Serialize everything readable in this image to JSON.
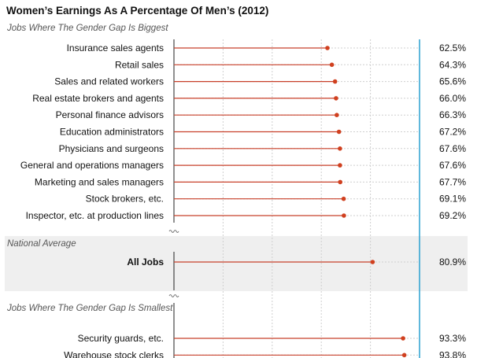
{
  "chart_data": {
    "type": "dot-line",
    "title": "Women’s Earnings As A Percentage Of Men’s (2012)",
    "unit": "%",
    "xlim": [
      0,
      100
    ],
    "grid": true,
    "colors": {
      "line": "#c8402a",
      "dot": "#d0401f",
      "reference_line": "#2aa0d0",
      "band": "#efefef"
    },
    "sections": [
      {
        "name": "Jobs Where The Gender Gap Is Biggest",
        "items": [
          {
            "label": "Insurance sales agents",
            "value": 62.5,
            "value_label": "62.5%"
          },
          {
            "label": "Retail sales",
            "value": 64.3,
            "value_label": "64.3%"
          },
          {
            "label": "Sales and related workers",
            "value": 65.6,
            "value_label": "65.6%"
          },
          {
            "label": "Real estate brokers and agents",
            "value": 66.0,
            "value_label": "66.0%"
          },
          {
            "label": "Personal finance advisors",
            "value": 66.3,
            "value_label": "66.3%"
          },
          {
            "label": "Education administrators",
            "value": 67.2,
            "value_label": "67.2%"
          },
          {
            "label": "Physicians and surgeons",
            "value": 67.6,
            "value_label": "67.6%"
          },
          {
            "label": "General and operations managers",
            "value": 67.6,
            "value_label": "67.6%"
          },
          {
            "label": "Marketing and sales managers",
            "value": 67.7,
            "value_label": "67.7%"
          },
          {
            "label": "Stock brokers, etc.",
            "value": 69.1,
            "value_label": "69.1%"
          },
          {
            "label": "Inspector, etc. at production lines",
            "value": 69.2,
            "value_label": "69.2%"
          }
        ]
      },
      {
        "name": "National Average",
        "highlight": true,
        "items": [
          {
            "label": "All Jobs",
            "value": 80.9,
            "value_label": "80.9%",
            "bold": true
          }
        ]
      },
      {
        "name": "Jobs Where The Gender Gap Is Smallest",
        "items": [
          {
            "label": "Security guards, etc.",
            "value": 93.3,
            "value_label": "93.3%"
          },
          {
            "label": "Warehouse stock clerks",
            "value": 93.8,
            "value_label": "93.8%"
          }
        ]
      }
    ]
  }
}
